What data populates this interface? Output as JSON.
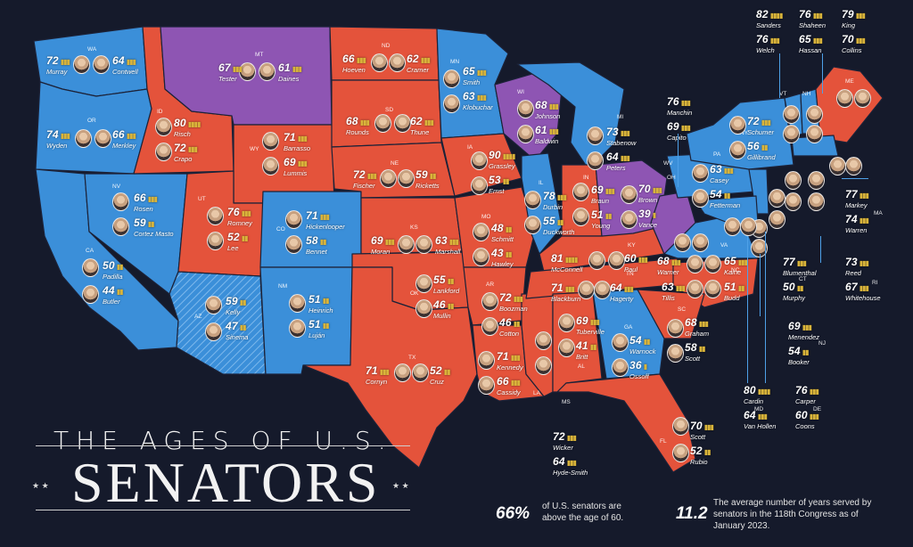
{
  "title_line1": "THE AGES OF U.S.",
  "title_line2": "SENATORS",
  "stats": [
    {
      "value": "66%",
      "text": "of U.S. senators are above the age of 60."
    },
    {
      "value": "11.2",
      "text": "The average number of years served by senators in the 118th Congress as of January 2023."
    }
  ],
  "colors": {
    "republican": "#e4533b",
    "democrat": "#3b8fd9",
    "independent": "#8e55b3",
    "split": "#8e55b3",
    "background": "#151a2b",
    "bars": "#d9b43a"
  },
  "states": [
    {
      "abbr": "WA",
      "senators": [
        {
          "name": "Murray",
          "age": "72"
        },
        {
          "name": "Contwell",
          "age": "64"
        }
      ]
    },
    {
      "abbr": "OR",
      "senators": [
        {
          "name": "Wyden",
          "age": "74"
        },
        {
          "name": "Merkley",
          "age": "66"
        }
      ]
    },
    {
      "abbr": "CA",
      "senators": [
        {
          "name": "Padilla",
          "age": "50"
        },
        {
          "name": "Butler",
          "age": "44"
        }
      ]
    },
    {
      "abbr": "NV",
      "senators": [
        {
          "name": "Rosen",
          "age": "66"
        },
        {
          "name": "Cortez Masto",
          "age": "59"
        }
      ]
    },
    {
      "abbr": "ID",
      "senators": [
        {
          "name": "Risch",
          "age": "80"
        },
        {
          "name": "Crapo",
          "age": "72"
        }
      ]
    },
    {
      "abbr": "MT",
      "senators": [
        {
          "name": "Tester",
          "age": "67"
        },
        {
          "name": "Daines",
          "age": "61"
        }
      ]
    },
    {
      "abbr": "WY",
      "senators": [
        {
          "name": "Barrasso",
          "age": "71"
        },
        {
          "name": "Lummis",
          "age": "69"
        }
      ]
    },
    {
      "abbr": "UT",
      "senators": [
        {
          "name": "Romney",
          "age": "76"
        },
        {
          "name": "Lee",
          "age": "52"
        }
      ]
    },
    {
      "abbr": "AZ",
      "senators": [
        {
          "name": "Kelly",
          "age": "59"
        },
        {
          "name": "Sinema",
          "age": "47"
        }
      ]
    },
    {
      "abbr": "CO",
      "senators": [
        {
          "name": "Hickenlooper",
          "age": "71"
        },
        {
          "name": "Bennet",
          "age": "58"
        }
      ]
    },
    {
      "abbr": "NM",
      "senators": [
        {
          "name": "Heinrich",
          "age": "51"
        },
        {
          "name": "Luján",
          "age": "51"
        }
      ]
    },
    {
      "abbr": "ND",
      "senators": [
        {
          "name": "Hoeven",
          "age": "66"
        },
        {
          "name": "Cramer",
          "age": "62"
        }
      ]
    },
    {
      "abbr": "SD",
      "senators": [
        {
          "name": "Rounds",
          "age": "68"
        },
        {
          "name": "Thune",
          "age": "62"
        }
      ]
    },
    {
      "abbr": "NE",
      "senators": [
        {
          "name": "Fischer",
          "age": "72"
        },
        {
          "name": "Ricketts",
          "age": "59"
        }
      ]
    },
    {
      "abbr": "KS",
      "senators": [
        {
          "name": "Moran",
          "age": "69"
        },
        {
          "name": "Marshall",
          "age": "63"
        }
      ]
    },
    {
      "abbr": "OK",
      "senators": [
        {
          "name": "Lankford",
          "age": "55"
        },
        {
          "name": "Mullin",
          "age": "46"
        }
      ]
    },
    {
      "abbr": "TX",
      "senators": [
        {
          "name": "Cornyn",
          "age": "71"
        },
        {
          "name": "Cruz",
          "age": "52"
        }
      ]
    },
    {
      "abbr": "MN",
      "senators": [
        {
          "name": "Smith",
          "age": "65"
        },
        {
          "name": "Klobuchar",
          "age": "63"
        }
      ]
    },
    {
      "abbr": "IA",
      "senators": [
        {
          "name": "Grassley",
          "age": "90"
        },
        {
          "name": "Ernst",
          "age": "53"
        }
      ]
    },
    {
      "abbr": "MO",
      "senators": [
        {
          "name": "Schmitt",
          "age": "48"
        },
        {
          "name": "Hawley",
          "age": "43"
        }
      ]
    },
    {
      "abbr": "AR",
      "senators": [
        {
          "name": "Boozman",
          "age": "72"
        },
        {
          "name": "Cotton",
          "age": "46"
        }
      ]
    },
    {
      "abbr": "LA",
      "senators": [
        {
          "name": "Kennedy",
          "age": "71"
        },
        {
          "name": "Cassidy",
          "age": "66"
        }
      ]
    },
    {
      "abbr": "WI",
      "senators": [
        {
          "name": "Johnson",
          "age": "68"
        },
        {
          "name": "Baldwin",
          "age": "61"
        }
      ]
    },
    {
      "abbr": "IL",
      "senators": [
        {
          "name": "Durbin",
          "age": "78"
        },
        {
          "name": "Duckworth",
          "age": "55"
        }
      ]
    },
    {
      "abbr": "MS",
      "senators": [
        {
          "name": "Wicker",
          "age": "72"
        },
        {
          "name": "Hyde-Smith",
          "age": "64"
        }
      ]
    },
    {
      "abbr": "MI",
      "senators": [
        {
          "name": "Stabenow",
          "age": "73"
        },
        {
          "name": "Peters",
          "age": "64"
        }
      ]
    },
    {
      "abbr": "IN",
      "senators": [
        {
          "name": "Braun",
          "age": "69"
        },
        {
          "name": "Young",
          "age": "51"
        }
      ]
    },
    {
      "abbr": "KY",
      "senators": [
        {
          "name": "McConnell",
          "age": "81"
        },
        {
          "name": "Paul",
          "age": "60"
        }
      ]
    },
    {
      "abbr": "TN",
      "senators": [
        {
          "name": "Blackburn",
          "age": "71"
        },
        {
          "name": "Hagerty",
          "age": "64"
        }
      ]
    },
    {
      "abbr": "AL",
      "senators": [
        {
          "name": "Tuberville",
          "age": "69"
        },
        {
          "name": "Britt",
          "age": "41"
        }
      ]
    },
    {
      "abbr": "GA",
      "senators": [
        {
          "name": "Warnock",
          "age": "54"
        },
        {
          "name": "Ossoff",
          "age": "36"
        }
      ]
    },
    {
      "abbr": "FL",
      "senators": [
        {
          "name": "Scott",
          "age": "70"
        },
        {
          "name": "Rubio",
          "age": "52"
        }
      ]
    },
    {
      "abbr": "OH",
      "senators": [
        {
          "name": "Brown",
          "age": "70"
        },
        {
          "name": "Vance",
          "age": "39"
        }
      ]
    },
    {
      "abbr": "WV",
      "senators": [
        {
          "name": "Manchin",
          "age": "76"
        },
        {
          "name": "Capito",
          "age": "69"
        }
      ]
    },
    {
      "abbr": "PA",
      "senators": [
        {
          "name": "Casey",
          "age": "63"
        },
        {
          "name": "Fetterman",
          "age": "54"
        }
      ]
    },
    {
      "abbr": "VA",
      "senators": [
        {
          "name": "Warner",
          "age": "68"
        },
        {
          "name": "Kaine",
          "age": "65"
        }
      ]
    },
    {
      "abbr": "NC",
      "senators": [
        {
          "name": "Tillis",
          "age": "63"
        },
        {
          "name": "Budd",
          "age": "51"
        }
      ]
    },
    {
      "abbr": "SC",
      "senators": [
        {
          "name": "Graham",
          "age": "68"
        },
        {
          "name": "Scott",
          "age": "58"
        }
      ]
    },
    {
      "abbr": "NY",
      "senators": [
        {
          "name": "Schumer",
          "age": "72"
        },
        {
          "name": "Gillibrand",
          "age": "56"
        }
      ]
    },
    {
      "abbr": "VT",
      "senators": [
        {
          "name": "Sanders",
          "age": "82"
        },
        {
          "name": "Welch",
          "age": "76"
        }
      ]
    },
    {
      "abbr": "NH",
      "senators": [
        {
          "name": "Shaheen",
          "age": "76"
        },
        {
          "name": "Hassan",
          "age": "65"
        }
      ]
    },
    {
      "abbr": "ME",
      "senators": [
        {
          "name": "King",
          "age": "79"
        },
        {
          "name": "Collins",
          "age": "70"
        }
      ]
    },
    {
      "abbr": "MA",
      "senators": [
        {
          "name": "Markey",
          "age": "77"
        },
        {
          "name": "Warren",
          "age": "74"
        }
      ]
    },
    {
      "abbr": "CT",
      "senators": [
        {
          "name": "Blumenthal",
          "age": "77"
        },
        {
          "name": "Murphy",
          "age": "50"
        }
      ]
    },
    {
      "abbr": "RI",
      "senators": [
        {
          "name": "Reed",
          "age": "73"
        },
        {
          "name": "Whitehouse",
          "age": "67"
        }
      ]
    },
    {
      "abbr": "NJ",
      "senators": [
        {
          "name": "Menendez",
          "age": "69"
        },
        {
          "name": "Booker",
          "age": "54"
        }
      ]
    },
    {
      "abbr": "DE",
      "senators": [
        {
          "name": "Carper",
          "age": "76"
        },
        {
          "name": "Coons",
          "age": "60"
        }
      ]
    },
    {
      "abbr": "MD",
      "senators": [
        {
          "name": "Cardin",
          "age": "80"
        },
        {
          "name": "Van Hollen",
          "age": "64"
        }
      ]
    }
  ]
}
